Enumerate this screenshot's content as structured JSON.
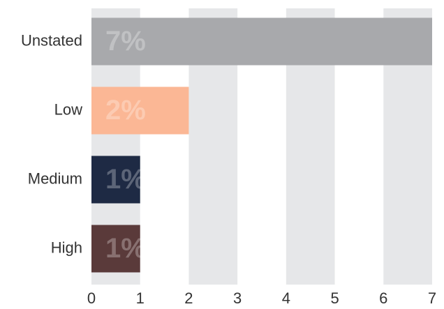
{
  "chart_data": {
    "type": "barh",
    "categories": [
      "Unstated",
      "Low",
      "Medium",
      "High"
    ],
    "values": [
      7,
      2,
      1,
      1
    ],
    "value_labels": [
      "7%",
      "2%",
      "1%",
      "1%"
    ],
    "colors": [
      "#a8a9ac",
      "#fbb795",
      "#1e2a44",
      "#5a3a3a"
    ],
    "xlim": [
      0,
      7
    ],
    "xticks": [
      0,
      1,
      2,
      3,
      4,
      5,
      6,
      7
    ],
    "grid": true
  }
}
